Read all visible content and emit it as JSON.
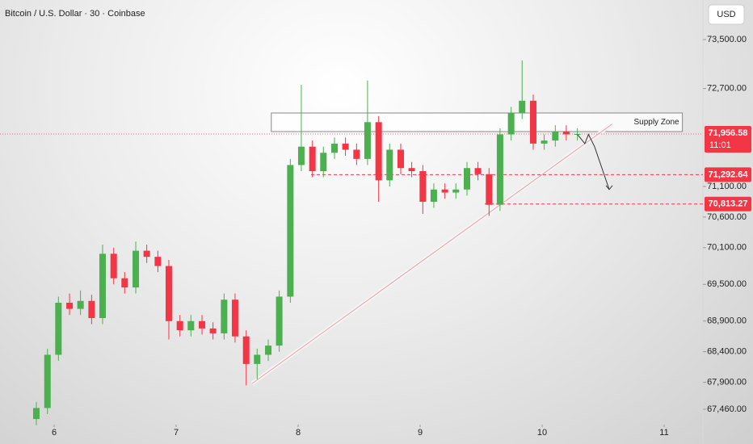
{
  "chart_data": {
    "type": "candlestick",
    "title": "Bitcoin / U.S. Dollar · 30 · Coinbase",
    "currency": "USD",
    "up_color": "#4caf50",
    "down_color": "#f23645",
    "xlim": [
      5.556,
      11.318
    ],
    "xticks": [
      6,
      7,
      8,
      9,
      10,
      11
    ],
    "ylim": [
      67288,
      74146
    ],
    "yticks": [
      {
        "value": 73500,
        "label": "73,500.00"
      },
      {
        "value": 72700,
        "label": "72,700.00"
      },
      {
        "value": 71100,
        "label": "71,100.00"
      },
      {
        "value": 70600,
        "label": "70,600.00"
      },
      {
        "value": 70100,
        "label": "70,100.00"
      },
      {
        "value": 69500,
        "label": "69,500.00"
      },
      {
        "value": 68900,
        "label": "68,900.00"
      },
      {
        "value": 68400,
        "label": "68,400.00"
      },
      {
        "value": 67900,
        "label": "67,900.00"
      },
      {
        "value": 67460,
        "label": "67,460.00"
      }
    ],
    "x": [
      5.854,
      5.945,
      6.035,
      6.126,
      6.216,
      6.307,
      6.397,
      6.488,
      6.578,
      6.669,
      6.759,
      6.85,
      6.94,
      7.031,
      7.121,
      7.212,
      7.302,
      7.393,
      7.483,
      7.574,
      7.664,
      7.755,
      7.845,
      7.936,
      8.026,
      8.117,
      8.207,
      8.298,
      8.388,
      8.479,
      8.569,
      8.66,
      8.75,
      8.841,
      8.931,
      9.022,
      9.112,
      9.203,
      9.293,
      9.384,
      9.474,
      9.565,
      9.655,
      9.746,
      9.836,
      9.927,
      10.017,
      10.108,
      10.198,
      10.289
    ],
    "open": [
      67300,
      67480,
      68350,
      69200,
      69100,
      69230,
      68950,
      70000,
      69600,
      69450,
      70050,
      69950,
      69800,
      68900,
      68750,
      68900,
      68780,
      68700,
      69250,
      68650,
      68200,
      68350,
      68500,
      69300,
      71450,
      71750,
      71350,
      71650,
      71800,
      71700,
      71550,
      72150,
      71200,
      71700,
      71400,
      71350,
      70850,
      71050,
      71000,
      71050,
      71400,
      71300,
      70800,
      71950,
      72300,
      72500,
      71800,
      71850,
      72000,
      71950
    ],
    "high": [
      67580,
      68450,
      69300,
      69350,
      69400,
      69330,
      70150,
      70100,
      69700,
      70200,
      70150,
      70050,
      69900,
      69000,
      69000,
      69000,
      68880,
      69350,
      69350,
      68750,
      68450,
      68600,
      69400,
      71550,
      72760,
      71850,
      71750,
      71900,
      71900,
      71800,
      72830,
      72250,
      71800,
      71800,
      71500,
      71450,
      71150,
      71150,
      71150,
      71500,
      71500,
      71400,
      72050,
      72400,
      73160,
      72600,
      71950,
      72100,
      72100,
      72050
    ],
    "low": [
      67200,
      67380,
      68250,
      69000,
      69000,
      68850,
      68850,
      69500,
      69350,
      69350,
      69850,
      69700,
      68600,
      68650,
      68650,
      68680,
      68600,
      68600,
      68550,
      67850,
      67950,
      68250,
      68400,
      69200,
      71350,
      71250,
      71250,
      71550,
      71600,
      71450,
      71450,
      70850,
      71100,
      71300,
      71250,
      70650,
      70750,
      70900,
      70900,
      70950,
      71200,
      70620,
      70700,
      71850,
      72200,
      71700,
      71700,
      71750,
      71850,
      71850
    ],
    "close": [
      67480,
      68350,
      69200,
      69100,
      69230,
      68950,
      70000,
      69600,
      69450,
      70050,
      69950,
      69800,
      68900,
      68750,
      68900,
      68780,
      68700,
      69250,
      68650,
      68200,
      68350,
      68500,
      69300,
      71450,
      71750,
      71350,
      71650,
      71800,
      71700,
      71550,
      72150,
      71200,
      71700,
      71400,
      71350,
      70850,
      71050,
      71000,
      71050,
      71400,
      71300,
      70800,
      71950,
      72300,
      72500,
      71800,
      71850,
      72000,
      71950,
      71957
    ],
    "supply_zone": {
      "label": "Supply Zone",
      "x": [
        7.78,
        11.15
      ],
      "y": [
        71996,
        72300
      ]
    },
    "trendline": {
      "x": [
        7.622,
        10.575
      ],
      "y": [
        67880,
        72120
      ]
    },
    "projection": {
      "x": [
        10.29,
        10.35,
        10.38,
        10.43,
        10.55
      ],
      "y": [
        71950,
        71800,
        71950,
        71750,
        71050
      ]
    },
    "levels": [
      {
        "value": 71292.64,
        "label": "71,292.64",
        "start": 8.106
      },
      {
        "value": 70813.27,
        "label": "70,813.27",
        "start": 9.53
      }
    ],
    "last_price": {
      "value": 71956.58,
      "label": "71,956.58",
      "countdown": "11:01"
    }
  }
}
